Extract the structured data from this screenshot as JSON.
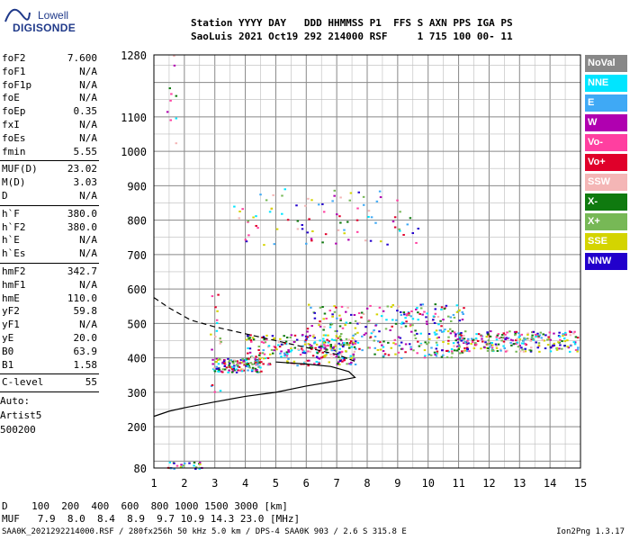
{
  "logo": {
    "line1": "Lowell",
    "line2": "DIGISONDE"
  },
  "header": {
    "line1": "Station YYYY DAY   DDD HHMMSS P1  FFS S AXN PPS IGA PS",
    "line2": "SaoLuis 2021 Oct19 292 214000 RSF     1 715 100 00- 11"
  },
  "params_group1": [
    {
      "k": "foF2",
      "v": "7.600"
    },
    {
      "k": "foF1",
      "v": "N/A"
    },
    {
      "k": "foF1p",
      "v": "N/A"
    },
    {
      "k": "foE",
      "v": "N/A"
    },
    {
      "k": "foEp",
      "v": "0.35"
    },
    {
      "k": "fxI",
      "v": "N/A"
    },
    {
      "k": "foEs",
      "v": "N/A"
    },
    {
      "k": "fmin",
      "v": "5.55"
    }
  ],
  "params_group2": [
    {
      "k": "MUF(D)",
      "v": "23.02"
    },
    {
      "k": "M(D)",
      "v": "3.03"
    },
    {
      "k": "D",
      "v": "N/A"
    }
  ],
  "params_group3": [
    {
      "k": "h`F",
      "v": "380.0"
    },
    {
      "k": "h`F2",
      "v": "380.0"
    },
    {
      "k": "h`E",
      "v": "N/A"
    },
    {
      "k": "h`Es",
      "v": "N/A"
    }
  ],
  "params_group4": [
    {
      "k": "hmF2",
      "v": "342.7"
    },
    {
      "k": "hmF1",
      "v": "N/A"
    },
    {
      "k": "hmE",
      "v": "110.0"
    },
    {
      "k": "yF2",
      "v": "59.8"
    },
    {
      "k": "yF1",
      "v": "N/A"
    },
    {
      "k": "yE",
      "v": "20.0"
    },
    {
      "k": "B0",
      "v": "63.9"
    },
    {
      "k": "B1",
      "v": "1.58"
    }
  ],
  "params_group5": [
    {
      "k": "C-level",
      "v": "55"
    }
  ],
  "auto": {
    "l1": "Auto:",
    "l2": "Artist5",
    "l3": "500200"
  },
  "legend": [
    {
      "label": "NoVal",
      "color": "#888888"
    },
    {
      "label": "NNE",
      "color": "#00e5ff"
    },
    {
      "label": "E",
      "color": "#3fa9f5"
    },
    {
      "label": "W",
      "color": "#b000b0"
    },
    {
      "label": "Vo-",
      "color": "#ff3fa0"
    },
    {
      "label": "Vo+",
      "color": "#e0002a"
    },
    {
      "label": "SSW",
      "color": "#f4b6b6"
    },
    {
      "label": "X-",
      "color": "#0f7a0f"
    },
    {
      "label": "X+",
      "color": "#77b856"
    },
    {
      "label": "SSE",
      "color": "#d4d400"
    },
    {
      "label": "NNW",
      "color": "#2200cc"
    }
  ],
  "chart_data": {
    "type": "scatter",
    "xlim": [
      1,
      15
    ],
    "ylim": [
      80,
      1280
    ],
    "x_ticks": [
      1,
      2,
      3,
      4,
      5,
      6,
      7,
      8,
      9,
      10,
      11,
      12,
      13,
      14,
      15
    ],
    "y_ticks": [
      80,
      200,
      300,
      400,
      500,
      600,
      700,
      800,
      900,
      1000,
      1100,
      1280
    ],
    "profile": [
      [
        1,
        230
      ],
      [
        1.5,
        245
      ],
      [
        2,
        255
      ],
      [
        3,
        272
      ],
      [
        4,
        288
      ],
      [
        5,
        300
      ],
      [
        6,
        318
      ],
      [
        7,
        333
      ],
      [
        7.6,
        343
      ],
      [
        7.4,
        360
      ],
      [
        6.8,
        375
      ],
      [
        6,
        382
      ],
      [
        5,
        388
      ]
    ],
    "topside": [
      [
        1,
        575
      ],
      [
        1.5,
        545
      ],
      [
        2.2,
        510
      ],
      [
        3,
        490
      ],
      [
        4,
        470
      ],
      [
        5,
        450
      ],
      [
        6,
        430
      ],
      [
        7,
        410
      ],
      [
        7.6,
        390
      ]
    ]
  },
  "footer": {
    "line1": "D    100  200  400  600  800 1000 1500 3000 [km]",
    "line2": "MUF   7.9  8.0  8.4  8.9  9.7 10.9 14.3 23.0 [MHz]"
  },
  "bottom_info": "SAA0K_2021292214000.RSF / 280fx256h 50 kHz 5.0 km / DPS-4 SAA0K 903 / 2.6 S 315.8 E",
  "version": "Ion2Png 1.3.17"
}
